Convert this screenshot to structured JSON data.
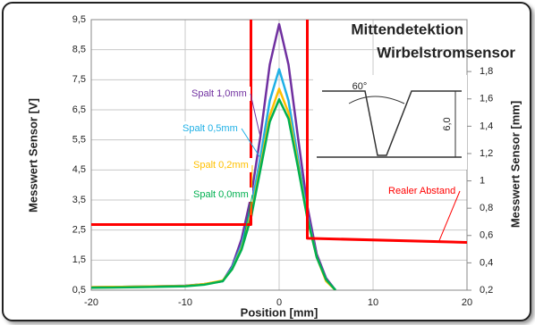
{
  "chart_data": {
    "type": "line",
    "annotations": [
      "Mittendetektion",
      "Wirbelstromsensor",
      "60°",
      "6,0"
    ],
    "xlabel": "Position [mm]",
    "ylabel": "Messwert Sensor [V]",
    "y2label": "Messwert Sensor [mm]",
    "x": [
      -20,
      -15,
      -10,
      -8,
      -6,
      -5,
      -4,
      -3,
      -2,
      -1,
      0,
      1,
      2,
      3,
      4,
      5,
      6
    ],
    "series": [
      {
        "name": "Spalt 1,0mm",
        "color": "#7030a0",
        "values": [
          0.6,
          0.62,
          0.65,
          0.7,
          0.8,
          1.3,
          2.2,
          3.6,
          5.6,
          8.0,
          9.35,
          8.0,
          5.6,
          3.3,
          1.7,
          0.9,
          0.5
        ]
      },
      {
        "name": "Spalt 0,5mm",
        "color": "#1fb0e6",
        "values": [
          0.6,
          0.62,
          0.64,
          0.7,
          0.8,
          1.25,
          2.0,
          3.2,
          4.9,
          6.8,
          7.85,
          6.8,
          4.9,
          3.0,
          1.6,
          0.85,
          0.5
        ]
      },
      {
        "name": "Spalt 0,2mm",
        "color": "#ffc000",
        "values": [
          0.6,
          0.62,
          0.64,
          0.7,
          0.82,
          1.2,
          1.9,
          3.0,
          4.6,
          6.3,
          7.2,
          6.4,
          4.7,
          2.9,
          1.6,
          0.8,
          0.5
        ]
      },
      {
        "name": "Spalt 0,0mm",
        "color": "#00b050",
        "values": [
          0.58,
          0.6,
          0.63,
          0.68,
          0.8,
          1.2,
          1.85,
          2.9,
          4.5,
          6.1,
          6.85,
          6.2,
          4.6,
          2.9,
          1.6,
          0.85,
          0.5
        ]
      },
      {
        "name": "Realer Abstand",
        "color": "#ff0000",
        "axis": "y2",
        "x": [
          -20,
          -3,
          -3,
          3,
          3,
          20
        ],
        "values": [
          0.68,
          0.68,
          2.5,
          2.5,
          0.58,
          0.55
        ]
      }
    ],
    "xlim": [
      -20,
      20
    ],
    "xticks": [
      -20,
      -10,
      0,
      10,
      20
    ],
    "ylim": [
      0.5,
      9.5
    ],
    "yticks": [
      {
        "value": 0.5,
        "label": "0,5"
      },
      {
        "value": 1.5,
        "label": "1,5"
      },
      {
        "value": 2.5,
        "label": "2,5"
      },
      {
        "value": 3.5,
        "label": "3,5"
      },
      {
        "value": 4.5,
        "label": "4,5"
      },
      {
        "value": 5.5,
        "label": "5,5"
      },
      {
        "value": 6.5,
        "label": "6,5"
      },
      {
        "value": 7.5,
        "label": "7,5"
      },
      {
        "value": 8.5,
        "label": "8,5"
      },
      {
        "value": 9.5,
        "label": "9,5"
      }
    ],
    "y2lim": [
      0.2,
      2.18
    ],
    "y2ticks": [
      {
        "value": 0.2,
        "label": "0,2"
      },
      {
        "value": 0.4,
        "label": "0,4"
      },
      {
        "value": 0.6,
        "label": "0,6"
      },
      {
        "value": 0.8,
        "label": "0,8"
      },
      1,
      {
        "value": 1.2,
        "label": "1,2"
      },
      {
        "value": 1.4,
        "label": "1,4"
      },
      {
        "value": 1.6,
        "label": "1,6"
      },
      {
        "value": 1.8,
        "label": "1,8"
      }
    ],
    "grid": true
  }
}
